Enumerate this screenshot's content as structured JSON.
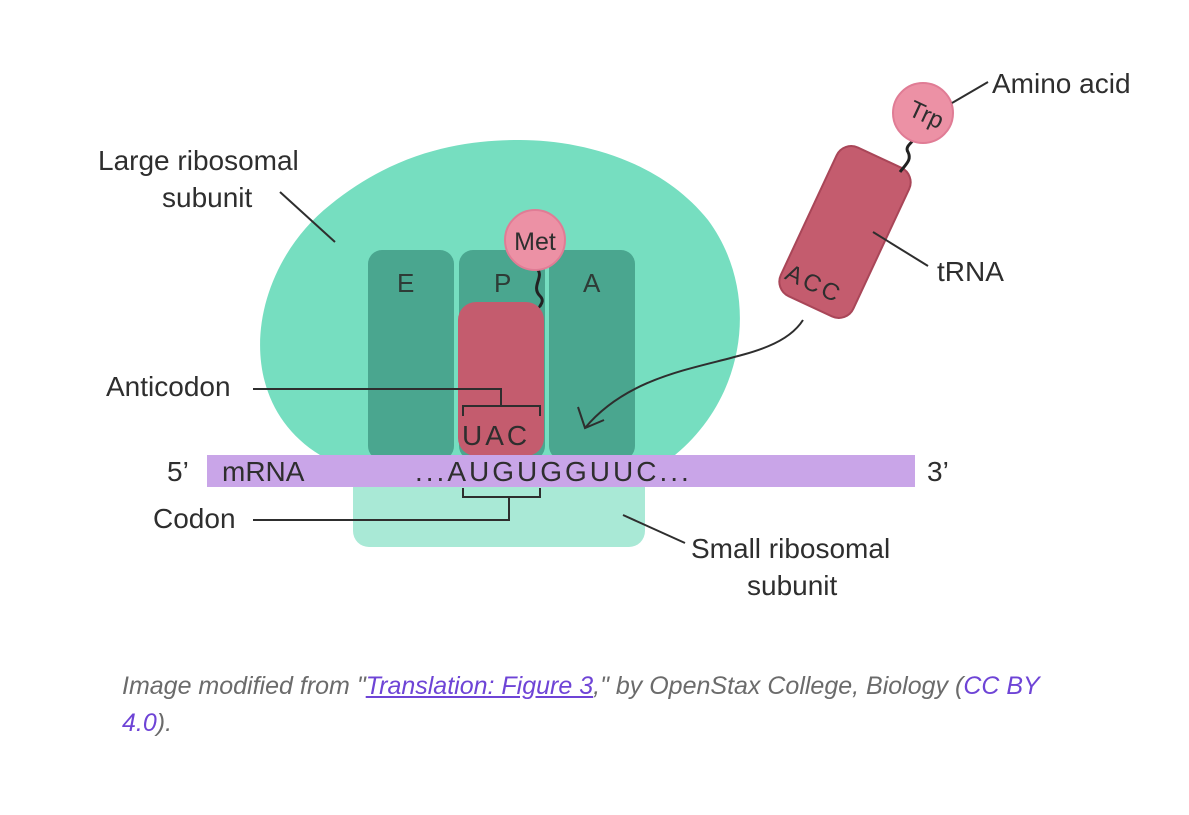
{
  "labels": {
    "large_subunit_line1": "Large ribosomal",
    "large_subunit_line2": "subunit",
    "small_subunit_line1": "Small ribosomal",
    "small_subunit_line2": "subunit",
    "amino_acid": "Amino acid",
    "trna": "tRNA",
    "anticodon": "Anticodon",
    "codon": "Codon",
    "mrna": "mRNA",
    "five_prime": "5’",
    "three_prime": "3’"
  },
  "sites": {
    "e": "E",
    "p": "P",
    "a": "A"
  },
  "molecules": {
    "met": "Met",
    "trp": "Trp",
    "anticodon_seq": "UAC",
    "incoming_anticodon": "ACC",
    "mrna_sequence": "...AUGUGGUUC..."
  },
  "caption": {
    "prefix": "Image modified from \"",
    "link_text": "Translation: Figure 3",
    "middle": ",\" by OpenStax College, Biology (",
    "license_text": "CC BY 4.0",
    "suffix": ")."
  },
  "colors": {
    "large_subunit": "#76dec0",
    "small_subunit": "#a9e9d6",
    "site_slot": "#4aa68f",
    "trna": "#c45c6e",
    "amino_acid": "#ec91a5",
    "mrna": "#c9a5e8",
    "link": "#6e44d6"
  }
}
